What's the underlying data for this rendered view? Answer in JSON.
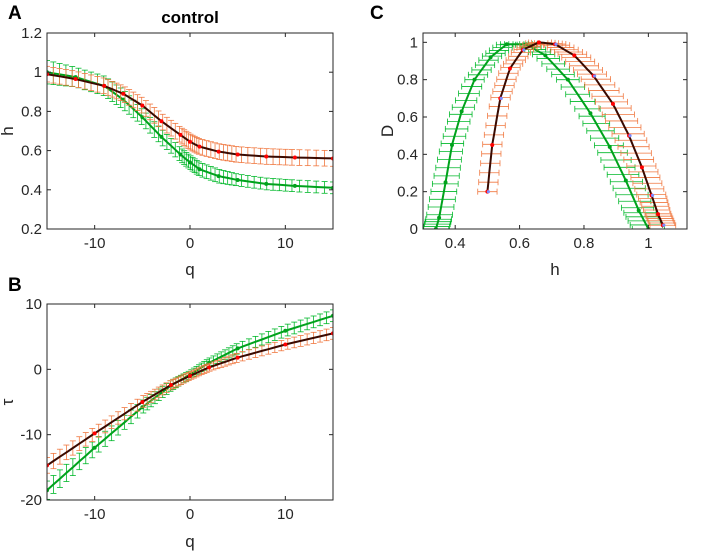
{
  "colors": {
    "green": "#00a21c",
    "green_err": "#00b82a",
    "red": "#ff0000",
    "orange_err": "#f07840",
    "dark": "#3a0a00",
    "blue_pts": "#7a8cff"
  },
  "chart_data": [
    {
      "id": "A",
      "panel_label": "A",
      "title": "control",
      "type": "line",
      "xlabel": "q",
      "ylabel": "h",
      "xlim": [
        -15,
        15
      ],
      "ylim": [
        0.2,
        1.2
      ],
      "xticks": [
        -10,
        0,
        10
      ],
      "yticks": [
        0.2,
        0.4,
        0.6,
        0.8,
        1,
        1.2
      ],
      "xtick_labels": [
        "-10",
        "0",
        "10"
      ],
      "ytick_labels": [
        "0.2",
        "0.4",
        "0.6",
        "0.8",
        "1",
        "1.2"
      ],
      "series": [
        {
          "name": "green",
          "style": "green",
          "x": [
            -15,
            -12,
            -9,
            -7,
            -5,
            -3,
            -1,
            0,
            1,
            3,
            5,
            8,
            11,
            15
          ],
          "y": [
            1.0,
            0.975,
            0.93,
            0.86,
            0.77,
            0.67,
            0.58,
            0.54,
            0.505,
            0.47,
            0.45,
            0.43,
            0.42,
            0.41
          ],
          "err": [
            0.06,
            0.05,
            0.05,
            0.05,
            0.04,
            0.04,
            0.035,
            0.035,
            0.035,
            0.035,
            0.03,
            0.03,
            0.03,
            0.03
          ]
        },
        {
          "name": "red",
          "style": "red",
          "x": [
            -15,
            -12,
            -9,
            -7,
            -5,
            -3,
            -1,
            0,
            1,
            3,
            5,
            8,
            11,
            15
          ],
          "y": [
            0.99,
            0.965,
            0.93,
            0.89,
            0.83,
            0.75,
            0.68,
            0.645,
            0.62,
            0.595,
            0.58,
            0.57,
            0.565,
            0.56
          ],
          "err": [
            0.04,
            0.04,
            0.04,
            0.04,
            0.04,
            0.04,
            0.04,
            0.04,
            0.04,
            0.04,
            0.04,
            0.04,
            0.04,
            0.04
          ]
        }
      ]
    },
    {
      "id": "B",
      "panel_label": "B",
      "title": "",
      "type": "line",
      "xlabel": "q",
      "ylabel": "τ",
      "xlim": [
        -15,
        15
      ],
      "ylim": [
        -20,
        10
      ],
      "xticks": [
        -10,
        0,
        10
      ],
      "yticks": [
        -20,
        -10,
        0,
        10
      ],
      "xtick_labels": [
        "-10",
        "0",
        "10"
      ],
      "ytick_labels": [
        "-20",
        "-10",
        "0",
        "10"
      ],
      "series": [
        {
          "name": "green",
          "style": "green",
          "x": [
            -15,
            -10,
            -5,
            -2,
            0,
            2,
            5,
            10,
            15
          ],
          "y": [
            -18.5,
            -12.0,
            -5.8,
            -2.5,
            -0.8,
            1.0,
            3.2,
            5.9,
            8.2
          ],
          "err": [
            1.4,
            1.2,
            1.0,
            0.8,
            0.6,
            0.7,
            0.8,
            0.9,
            0.9
          ]
        },
        {
          "name": "red",
          "style": "red",
          "x": [
            -15,
            -10,
            -5,
            -2,
            0,
            2,
            5,
            10,
            15
          ],
          "y": [
            -14.7,
            -9.8,
            -5.0,
            -2.4,
            -1.0,
            0.3,
            1.8,
            3.8,
            5.5
          ],
          "err": [
            1.2,
            1.0,
            0.9,
            0.7,
            0.6,
            0.6,
            0.7,
            0.8,
            0.9
          ]
        }
      ]
    },
    {
      "id": "C",
      "panel_label": "C",
      "title": "",
      "type": "line",
      "xlabel": "h",
      "ylabel": "D",
      "xlim": [
        0.3,
        1.12
      ],
      "ylim": [
        0,
        1.05
      ],
      "xticks": [
        0.4,
        0.6,
        0.8,
        1
      ],
      "yticks": [
        0,
        0.2,
        0.4,
        0.6,
        0.8,
        1
      ],
      "xtick_labels": [
        "0.4",
        "0.6",
        "0.8",
        "1"
      ],
      "ytick_labels": [
        "0",
        "0.2",
        "0.4",
        "0.6",
        "0.8",
        "1"
      ],
      "series": [
        {
          "name": "green",
          "style": "green",
          "x": [
            0.34,
            0.35,
            0.37,
            0.39,
            0.42,
            0.46,
            0.51,
            0.56,
            0.62,
            0.68,
            0.75,
            0.82,
            0.88,
            0.93,
            0.97,
            1.0
          ],
          "y": [
            0.0,
            0.06,
            0.25,
            0.45,
            0.63,
            0.8,
            0.92,
            0.99,
            0.99,
            0.93,
            0.8,
            0.62,
            0.44,
            0.26,
            0.1,
            0.0
          ],
          "err": [
            0.04,
            0.04,
            0.04,
            0.035,
            0.035,
            0.03,
            0.03,
            0.03,
            0.03,
            0.035,
            0.035,
            0.04,
            0.045,
            0.05,
            0.05,
            0.05
          ]
        },
        {
          "name": "red",
          "style": "red",
          "x": [
            0.5,
            0.515,
            0.54,
            0.57,
            0.61,
            0.66,
            0.71,
            0.77,
            0.83,
            0.89,
            0.94,
            0.98,
            1.01,
            1.03,
            1.045
          ],
          "y": [
            0.2,
            0.45,
            0.7,
            0.86,
            0.96,
            1.0,
            0.99,
            0.93,
            0.82,
            0.67,
            0.5,
            0.33,
            0.18,
            0.08,
            0.02
          ],
          "err": [
            0.03,
            0.03,
            0.03,
            0.03,
            0.03,
            0.035,
            0.04,
            0.045,
            0.045,
            0.05,
            0.05,
            0.045,
            0.045,
            0.04,
            0.04
          ]
        }
      ]
    }
  ]
}
